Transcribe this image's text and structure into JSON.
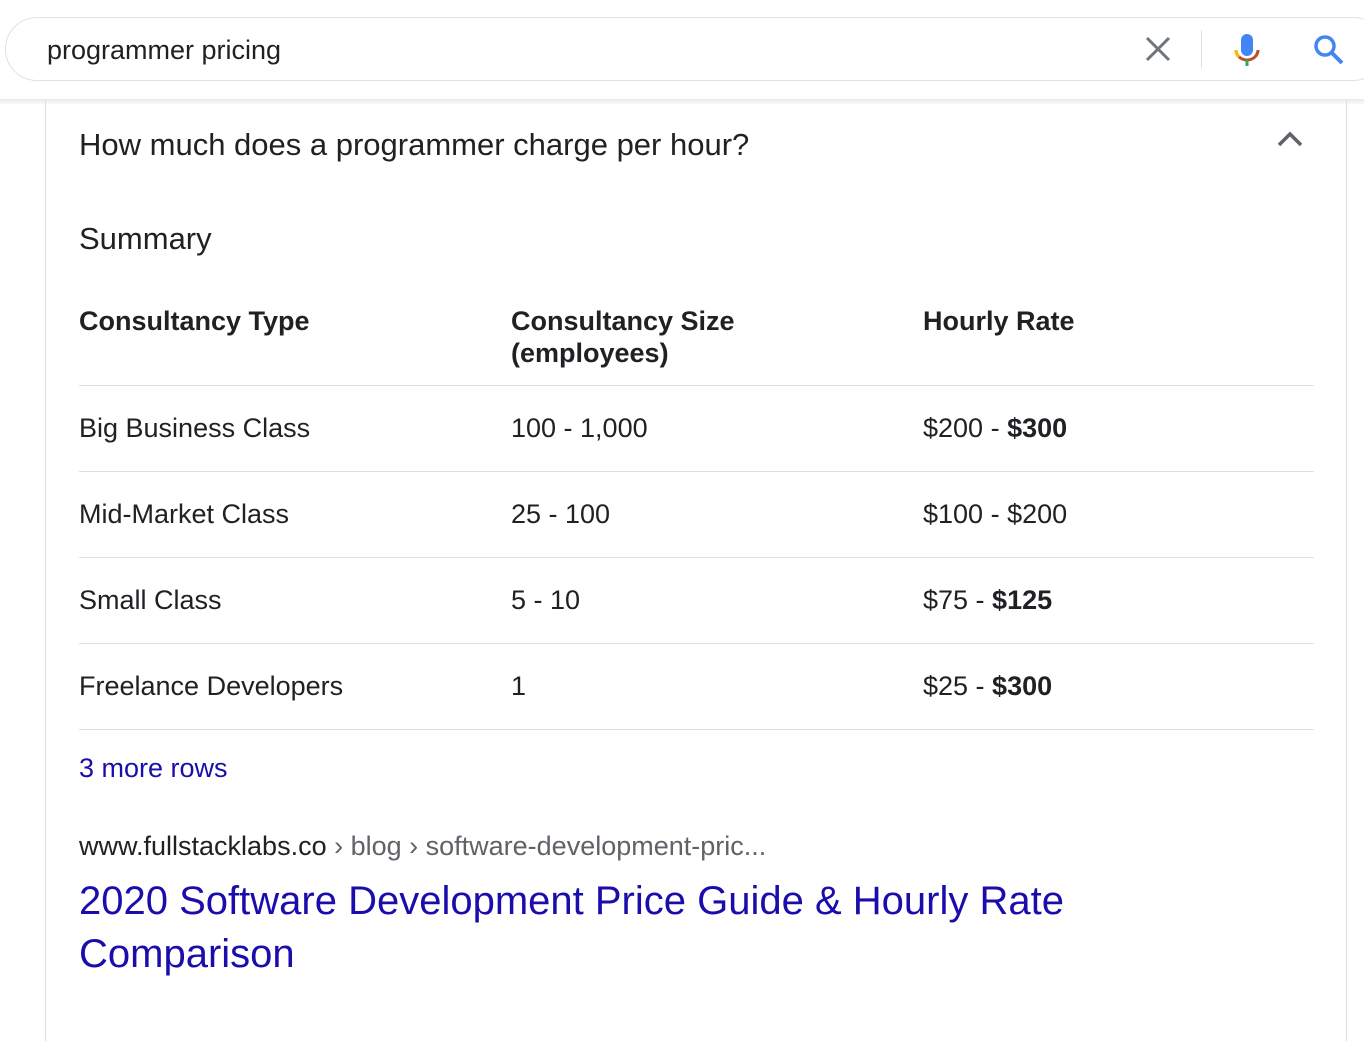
{
  "search": {
    "query": "programmer pricing"
  },
  "question": "How much does a programmer charge per hour?",
  "summary_label": "Summary",
  "table": {
    "headers": [
      "Consultancy Type",
      "Consultancy Size (employees)",
      "Hourly Rate"
    ],
    "rows": [
      {
        "type": "Big Business Class",
        "size": "100 - 1,000",
        "rate_low": "$200 - ",
        "rate_high": "$300",
        "high_bold": true
      },
      {
        "type": "Mid-Market Class",
        "size": "25 - 100",
        "rate_low": "$100 - ",
        "rate_high": "$200",
        "high_bold": false
      },
      {
        "type": "Small Class",
        "size": "5 - 10",
        "rate_low": "$75 - ",
        "rate_high": "$125",
        "high_bold": true
      },
      {
        "type": "Freelance Developers",
        "size": "1",
        "rate_low": "$25 - ",
        "rate_high": "$300",
        "high_bold": true
      }
    ]
  },
  "more_rows": "3 more rows",
  "result": {
    "domain": "www.fullstacklabs.co",
    "path": " › blog › software-development-pric...",
    "title": "2020 Software Development Price Guide & Hourly Rate Comparison"
  },
  "colors": {
    "link": "#1a0dab",
    "mic_blue": "#4285f4",
    "search_blue": "#4285f4"
  }
}
